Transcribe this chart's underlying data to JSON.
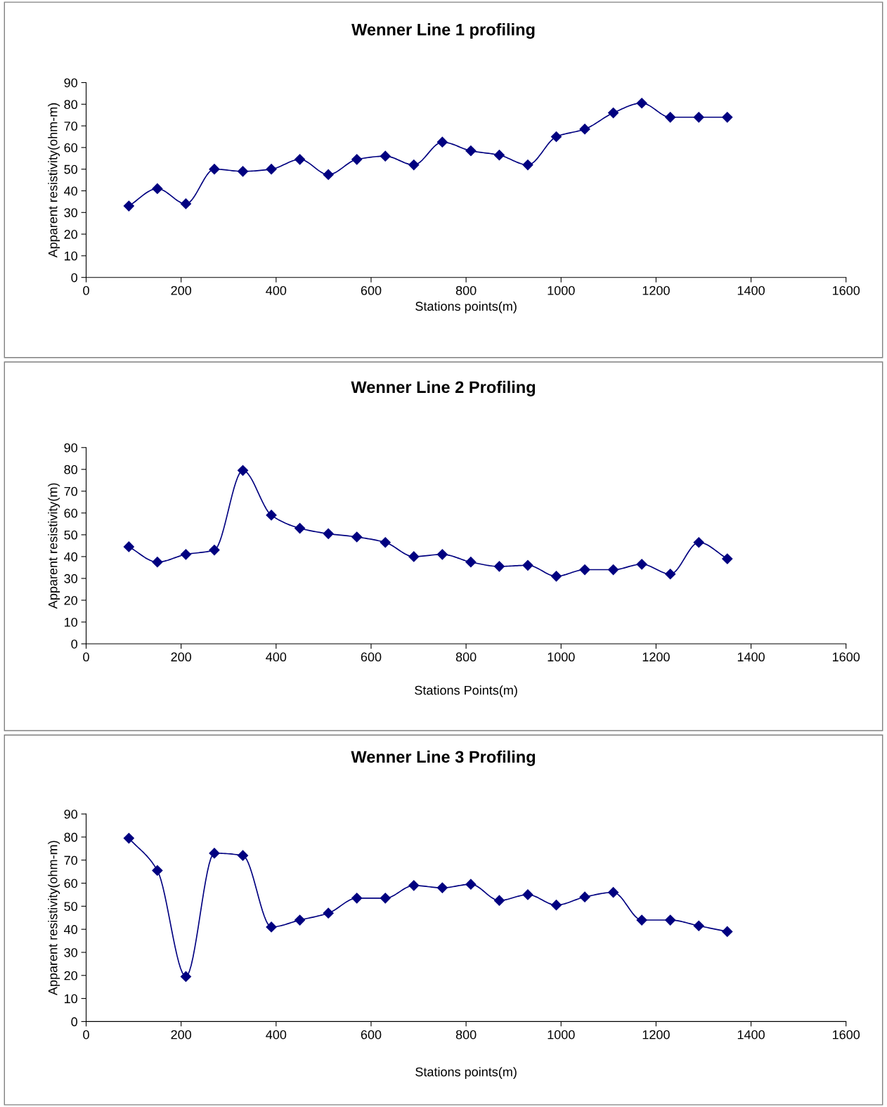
{
  "chart_data": [
    {
      "type": "line",
      "title": "Wenner Line 1 profiling",
      "xlabel": "Stations points(m)",
      "ylabel": "Apparent resistivity(ohm-m)",
      "x": [
        90,
        150,
        210,
        270,
        330,
        390,
        450,
        510,
        570,
        630,
        690,
        750,
        810,
        870,
        930,
        990,
        1050,
        1110,
        1170,
        1230,
        1290,
        1350
      ],
      "series": [
        {
          "color": "#000080",
          "values": [
            33,
            41,
            34,
            50,
            49,
            50,
            54.5,
            47.5,
            54.5,
            56,
            52,
            62.5,
            58.5,
            56.5,
            52,
            65,
            68.5,
            76,
            80.5,
            74,
            74,
            74
          ]
        }
      ],
      "xlim": [
        0,
        1600
      ],
      "xticks": [
        0,
        200,
        400,
        600,
        800,
        1000,
        1200,
        1400,
        1600
      ],
      "ylim": [
        0,
        90
      ],
      "yticks": [
        0,
        10,
        20,
        30,
        40,
        50,
        60,
        70,
        80,
        90
      ],
      "marker": "diamond",
      "line_style": "solid",
      "grid": false
    },
    {
      "type": "line",
      "title": "Wenner Line 2 Profiling",
      "xlabel": "Stations Points(m)",
      "ylabel": "Apparent resistivity(m)",
      "x": [
        90,
        150,
        210,
        270,
        330,
        390,
        450,
        510,
        570,
        630,
        690,
        750,
        810,
        870,
        930,
        990,
        1050,
        1110,
        1170,
        1230,
        1290,
        1350
      ],
      "series": [
        {
          "color": "#000080",
          "values": [
            44.5,
            37.5,
            41,
            43,
            79.5,
            59,
            53,
            50.5,
            49,
            46.5,
            40,
            41,
            37.5,
            35.5,
            36,
            31,
            34,
            34,
            36.5,
            32,
            46.5,
            39
          ]
        }
      ],
      "xlim": [
        0,
        1600
      ],
      "xticks": [
        0,
        200,
        400,
        600,
        800,
        1000,
        1200,
        1400,
        1600
      ],
      "ylim": [
        0,
        90
      ],
      "yticks": [
        0,
        10,
        20,
        30,
        40,
        50,
        60,
        70,
        80,
        90
      ],
      "marker": "diamond",
      "line_style": "solid",
      "grid": false
    },
    {
      "type": "line",
      "title": "Wenner Line 3 Profiling",
      "xlabel": "Stations points(m)",
      "ylabel": "Apparent resistivity(ohm-m)",
      "x": [
        90,
        150,
        210,
        270,
        330,
        390,
        450,
        510,
        570,
        630,
        690,
        750,
        810,
        870,
        930,
        990,
        1050,
        1110,
        1170,
        1230,
        1290,
        1350
      ],
      "series": [
        {
          "color": "#000080",
          "values": [
            79.5,
            65.5,
            19.5,
            73,
            72,
            41,
            44,
            47,
            53.5,
            53.5,
            59,
            58,
            59.5,
            52.5,
            55,
            50.5,
            54,
            56,
            44,
            44,
            41.5,
            39
          ]
        }
      ],
      "xlim": [
        0,
        1600
      ],
      "xticks": [
        0,
        200,
        400,
        600,
        800,
        1000,
        1200,
        1400,
        1600
      ],
      "ylim": [
        0,
        90
      ],
      "yticks": [
        0,
        10,
        20,
        30,
        40,
        50,
        60,
        70,
        80,
        90
      ],
      "marker": "diamond",
      "line_style": "solid",
      "grid": false
    }
  ]
}
